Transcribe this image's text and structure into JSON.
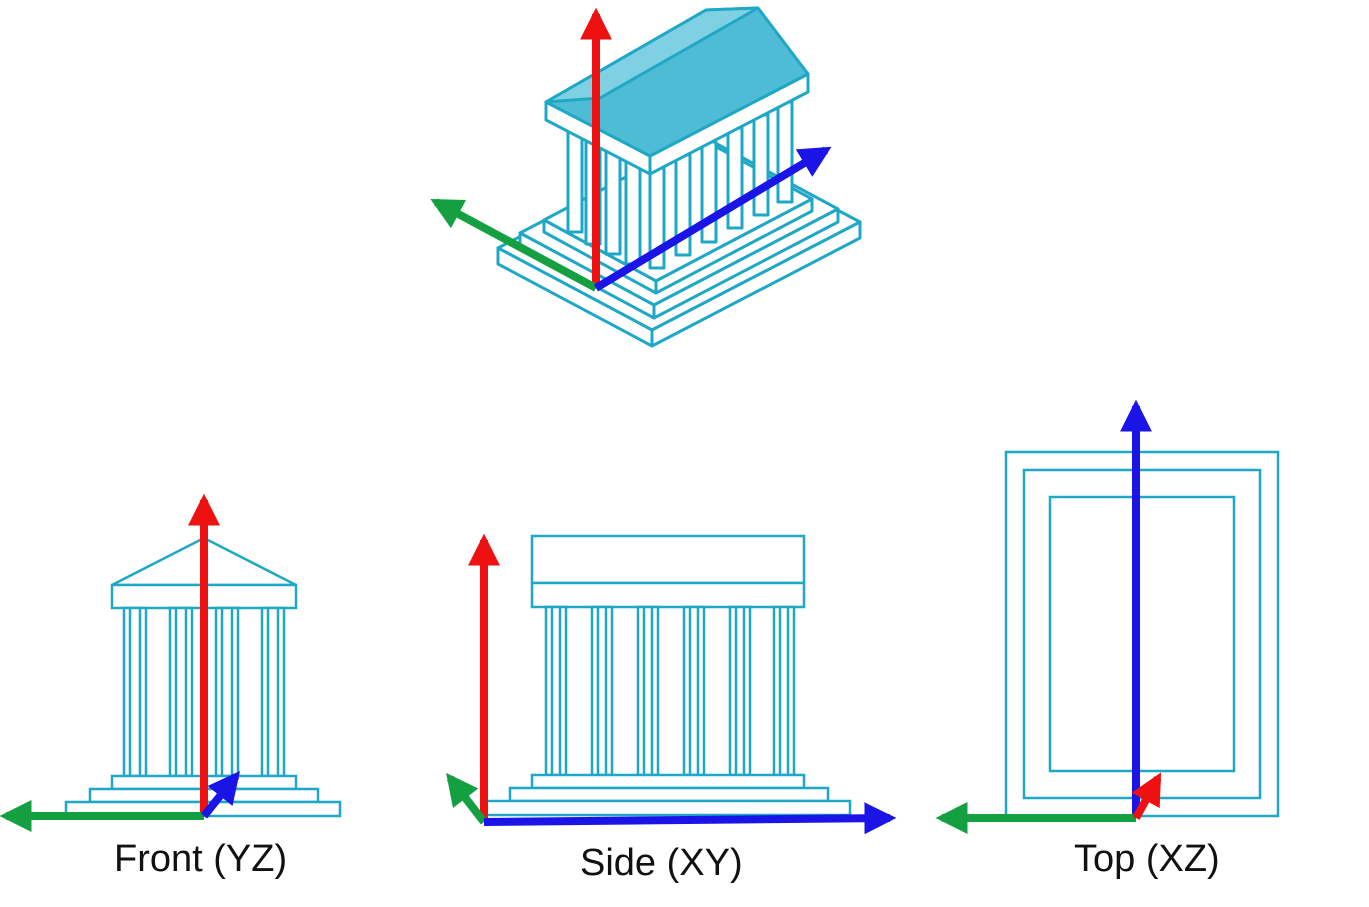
{
  "views": [
    {
      "id": "front",
      "label": "Front (YZ)"
    },
    {
      "id": "side",
      "label": "Side (XY)"
    },
    {
      "id": "top",
      "label": "Top (XZ)"
    }
  ],
  "colors": {
    "outline": "#1fa8c6",
    "fill": "#4fbcd6",
    "axis_x": "#ee1111",
    "axis_y": "#14a040",
    "axis_z": "#1a14e6"
  }
}
